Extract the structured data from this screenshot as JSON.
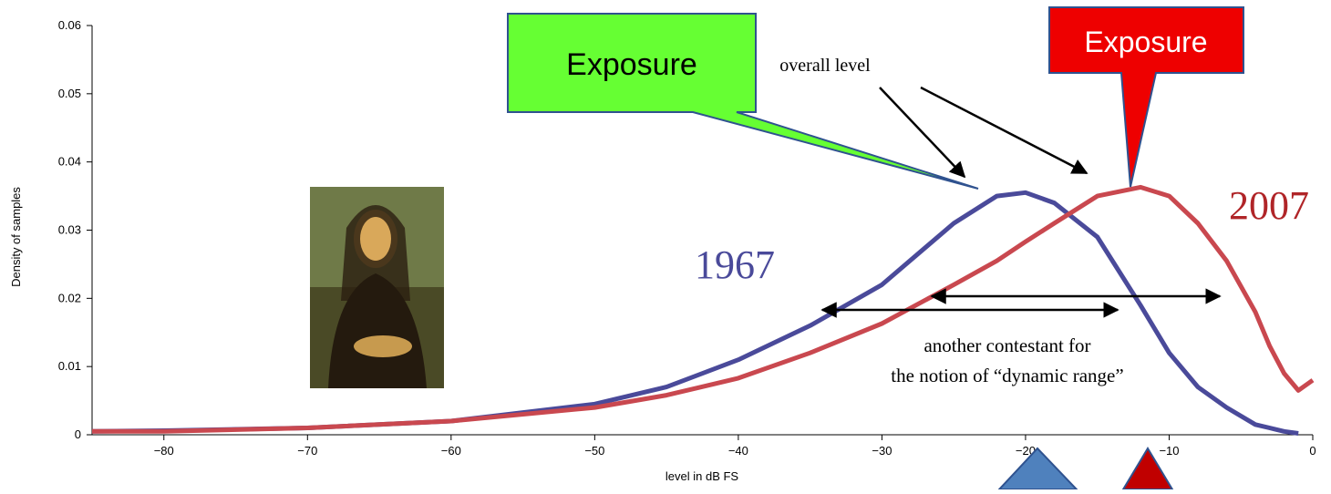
{
  "chart_data": {
    "type": "line",
    "xlabel": "level in dB FS",
    "ylabel": "Density of samples",
    "x": [
      -85,
      -80,
      -70,
      -60,
      -50,
      -45,
      -40,
      -35,
      -30,
      -25,
      -22,
      -20,
      -18,
      -15,
      -12,
      -10,
      -8,
      -6,
      -4,
      -3,
      -2,
      -1,
      0
    ],
    "series": [
      {
        "name": "1967",
        "color": "#4a4a9a",
        "values": [
          0.0005,
          0.0006,
          0.001,
          0.002,
          0.0045,
          0.007,
          0.011,
          0.016,
          0.022,
          0.031,
          0.035,
          0.0355,
          0.034,
          0.029,
          0.019,
          0.012,
          0.007,
          0.004,
          0.0015,
          0.001,
          0.0005,
          0.0002,
          null
        ]
      },
      {
        "name": "2007",
        "color": "#c9484f",
        "values": [
          0.0005,
          0.0005,
          0.001,
          0.002,
          0.004,
          0.0058,
          0.0083,
          0.012,
          0.0163,
          0.022,
          0.0255,
          0.0283,
          0.031,
          0.035,
          0.0363,
          0.035,
          0.031,
          0.0255,
          0.018,
          0.013,
          0.009,
          0.0065,
          0.008
        ]
      }
    ],
    "xlim": [
      -85,
      0
    ],
    "ylim": [
      0,
      0.06
    ],
    "xticks": [
      {
        "value": -80,
        "label": "−80"
      },
      {
        "value": -70,
        "label": "−70"
      },
      {
        "value": -60,
        "label": "−60"
      },
      {
        "value": -50,
        "label": "−50"
      },
      {
        "value": -40,
        "label": "−40"
      },
      {
        "value": -30,
        "label": "−30"
      },
      {
        "value": -20,
        "label": "−20"
      },
      {
        "value": -10,
        "label": "−10"
      },
      0
    ],
    "yticks": [
      0,
      0.01,
      0.02,
      0.03,
      0.04,
      0.05,
      0.06
    ],
    "annotations": [
      "overall level",
      "another contestant for",
      "the notion of “dynamic range”"
    ],
    "callouts": [
      "Exposure",
      "Exposure"
    ]
  }
}
